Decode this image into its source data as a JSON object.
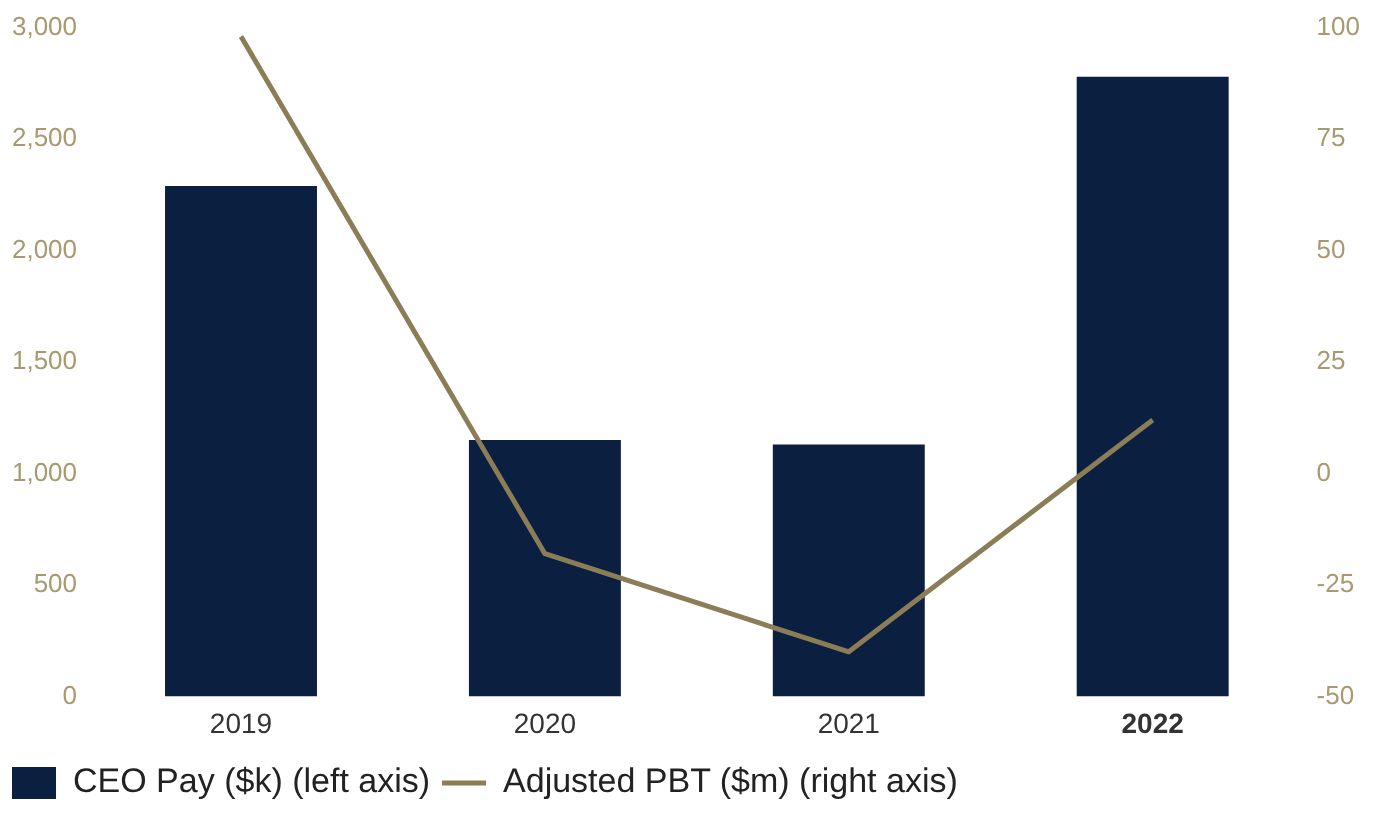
{
  "chart_data": {
    "type": "bar",
    "categories": [
      "2019",
      "2020",
      "2021",
      "2022"
    ],
    "series": [
      {
        "name": "CEO Pay ($k) (left axis)",
        "color": "#0b1f40",
        "values": [
          2290,
          1150,
          1130,
          2780
        ]
      },
      {
        "name": "Adjusted PBT ($m) (right axis)",
        "type": "line",
        "axis": "y2",
        "color": "#8b7d55",
        "values": [
          98,
          -18,
          -40,
          12
        ]
      }
    ],
    "ylim": [
      0,
      3000
    ],
    "yticks": [
      {
        "value": 0,
        "label": "0"
      },
      {
        "value": 500,
        "label": "500"
      },
      {
        "value": 1000,
        "label": "1,000"
      },
      {
        "value": 1500,
        "label": "1,500"
      },
      {
        "value": 2000,
        "label": "2,000"
      },
      {
        "value": 2500,
        "label": "2,500"
      },
      {
        "value": 3000,
        "label": "3,000"
      }
    ],
    "y2lim": [
      -50,
      100
    ],
    "y2ticks": [
      -50,
      -25,
      0,
      25,
      50,
      75,
      100
    ],
    "grid": false,
    "legend": "bottom left",
    "marker": "none"
  }
}
